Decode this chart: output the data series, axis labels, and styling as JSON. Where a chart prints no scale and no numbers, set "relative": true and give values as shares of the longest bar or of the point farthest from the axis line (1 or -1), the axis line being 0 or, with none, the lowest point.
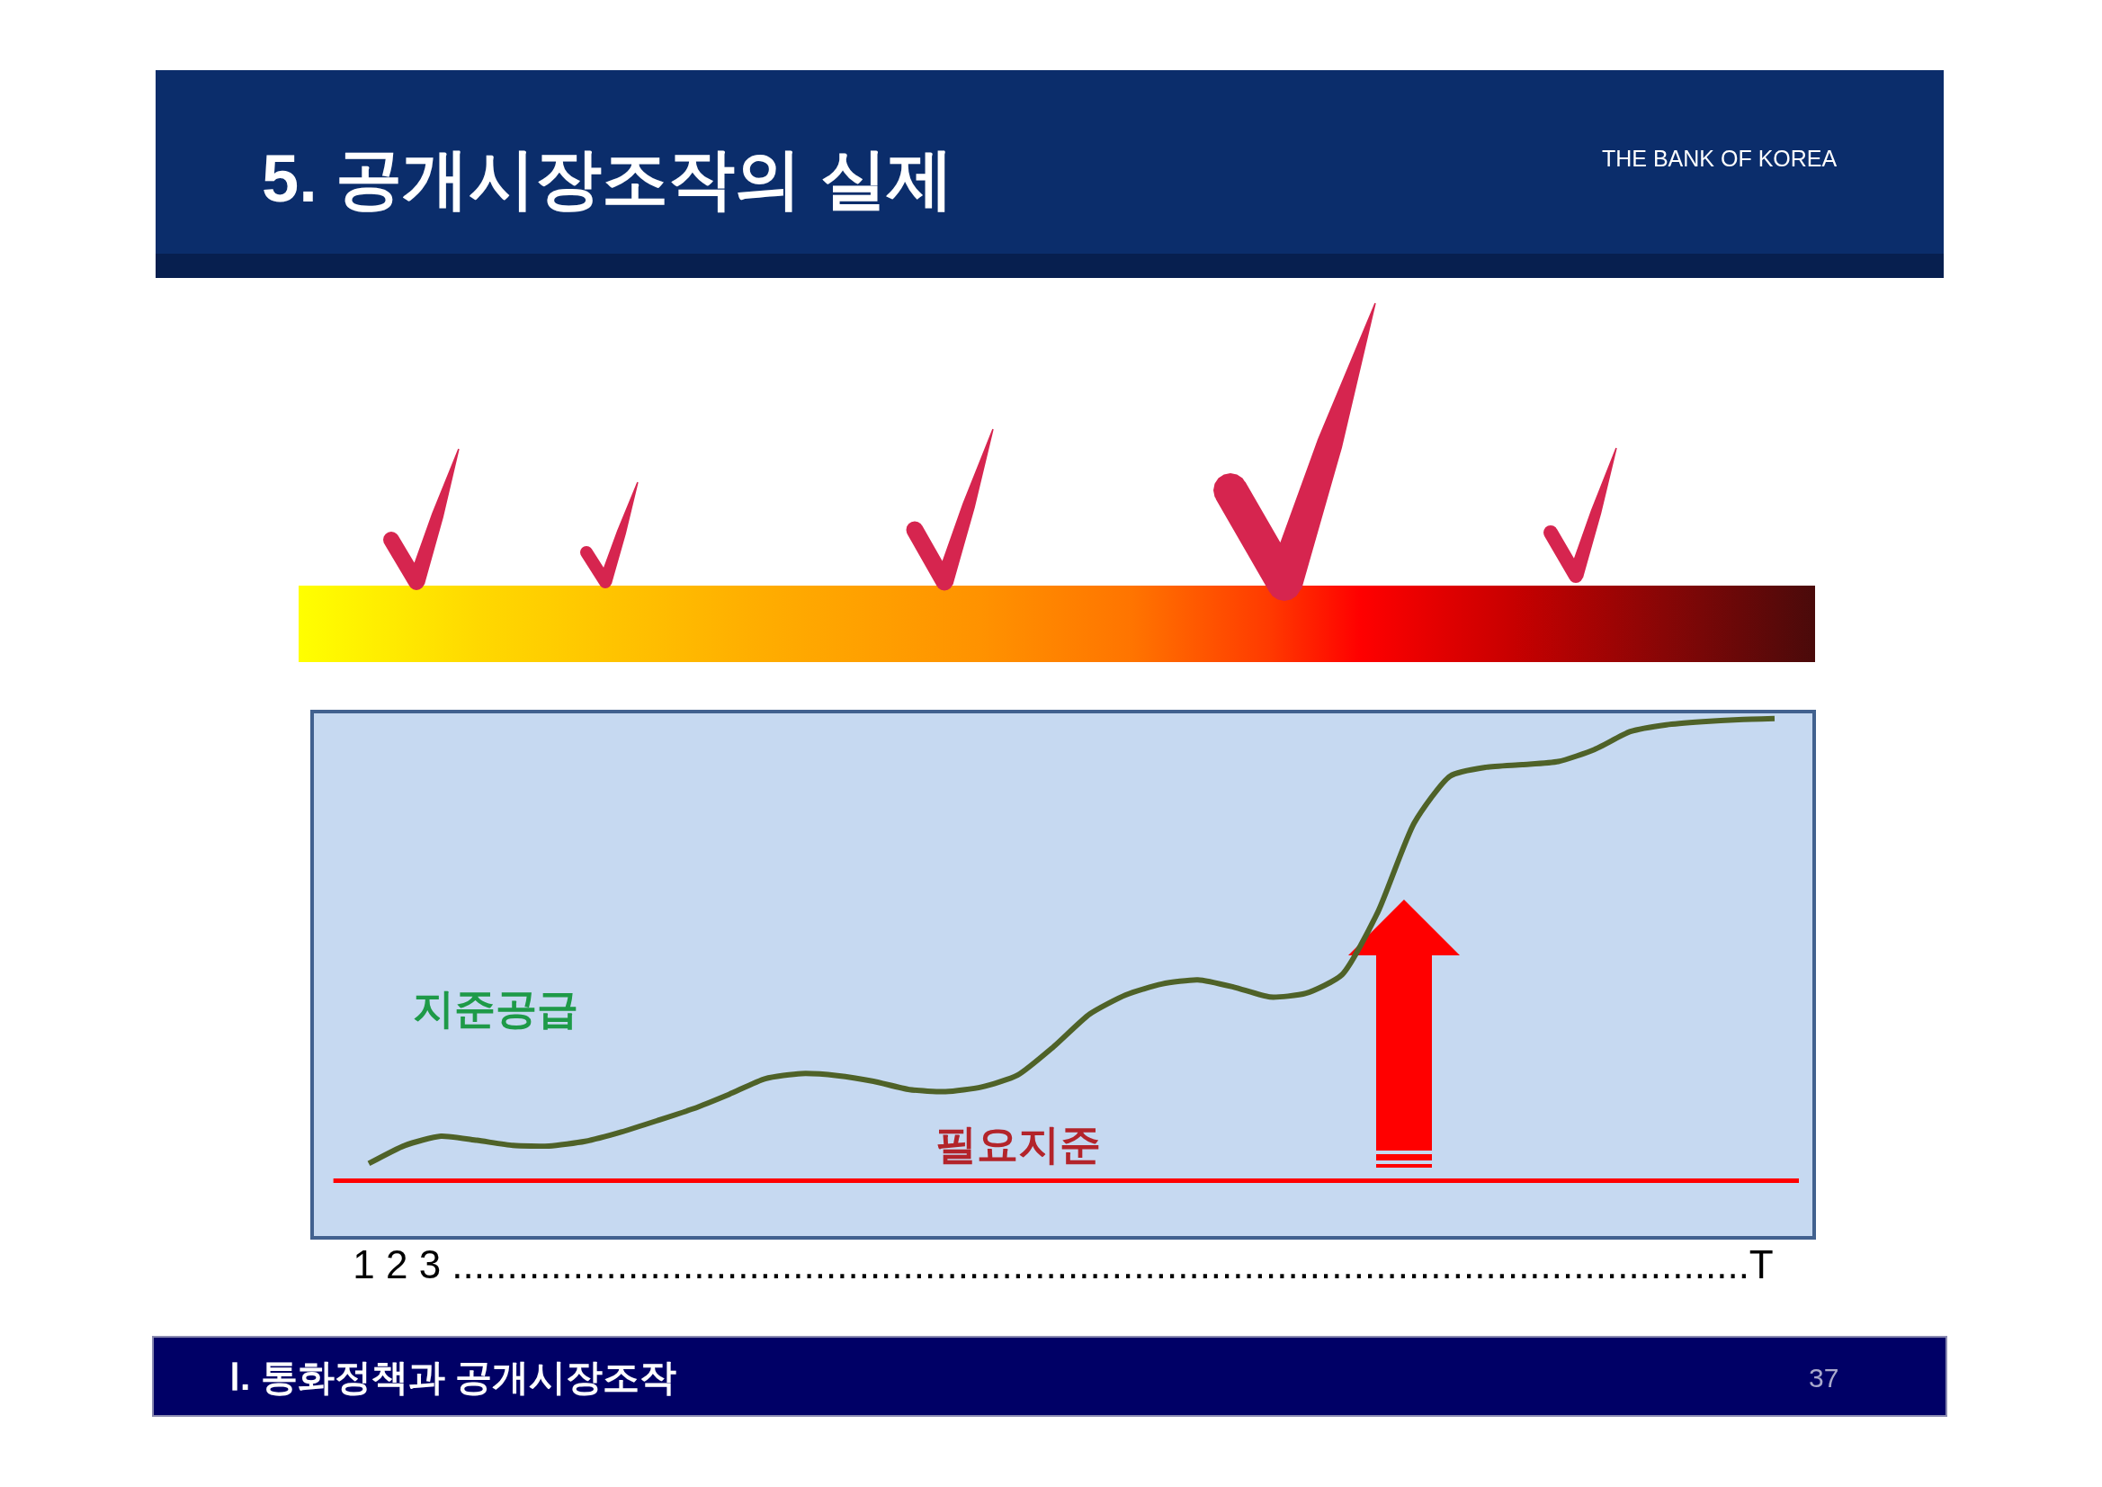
{
  "chart_data": {
    "type": "line",
    "title": "5. 공개시장조작의 실제",
    "xlabel": "1 2 3 ......................................................................................................................T",
    "categories": [
      null,
      null,
      null,
      null,
      null,
      null,
      null,
      null,
      null,
      null,
      null,
      null,
      null,
      null,
      null,
      null,
      null,
      null,
      null,
      null,
      null,
      null,
      null,
      null,
      null,
      null,
      null,
      null,
      null,
      null,
      null,
      null,
      null,
      null,
      null,
      null,
      null,
      null,
      null,
      null
    ],
    "relative": true,
    "tick_labels": false,
    "line_style": "solid",
    "series": [
      {
        "name": "지준공급",
        "color": "#4f6228",
        "values": [
          0.14,
          0.175,
          0.193,
          0.185,
          0.175,
          0.174,
          0.183,
          0.201,
          0.223,
          0.246,
          0.274,
          0.304,
          0.314,
          0.31,
          0.299,
          0.283,
          0.279,
          0.288,
          0.311,
          0.366,
          0.429,
          0.466,
          0.487,
          0.495,
          0.481,
          0.462,
          0.469,
          0.505,
          0.627,
          0.798,
          0.889,
          0.906,
          0.911,
          0.917,
          0.94,
          0.975,
          0.988,
          0.994,
          0.998,
          1.0
        ]
      }
    ],
    "ref_lines": [
      {
        "axis": "y",
        "value": 0.107,
        "label": "필요지준",
        "color": "#ff0000"
      }
    ],
    "annotations": [
      "THE BANK OF KOREA",
      "Ⅰ. 통화정책과 공개시장조작",
      "37"
    ]
  }
}
